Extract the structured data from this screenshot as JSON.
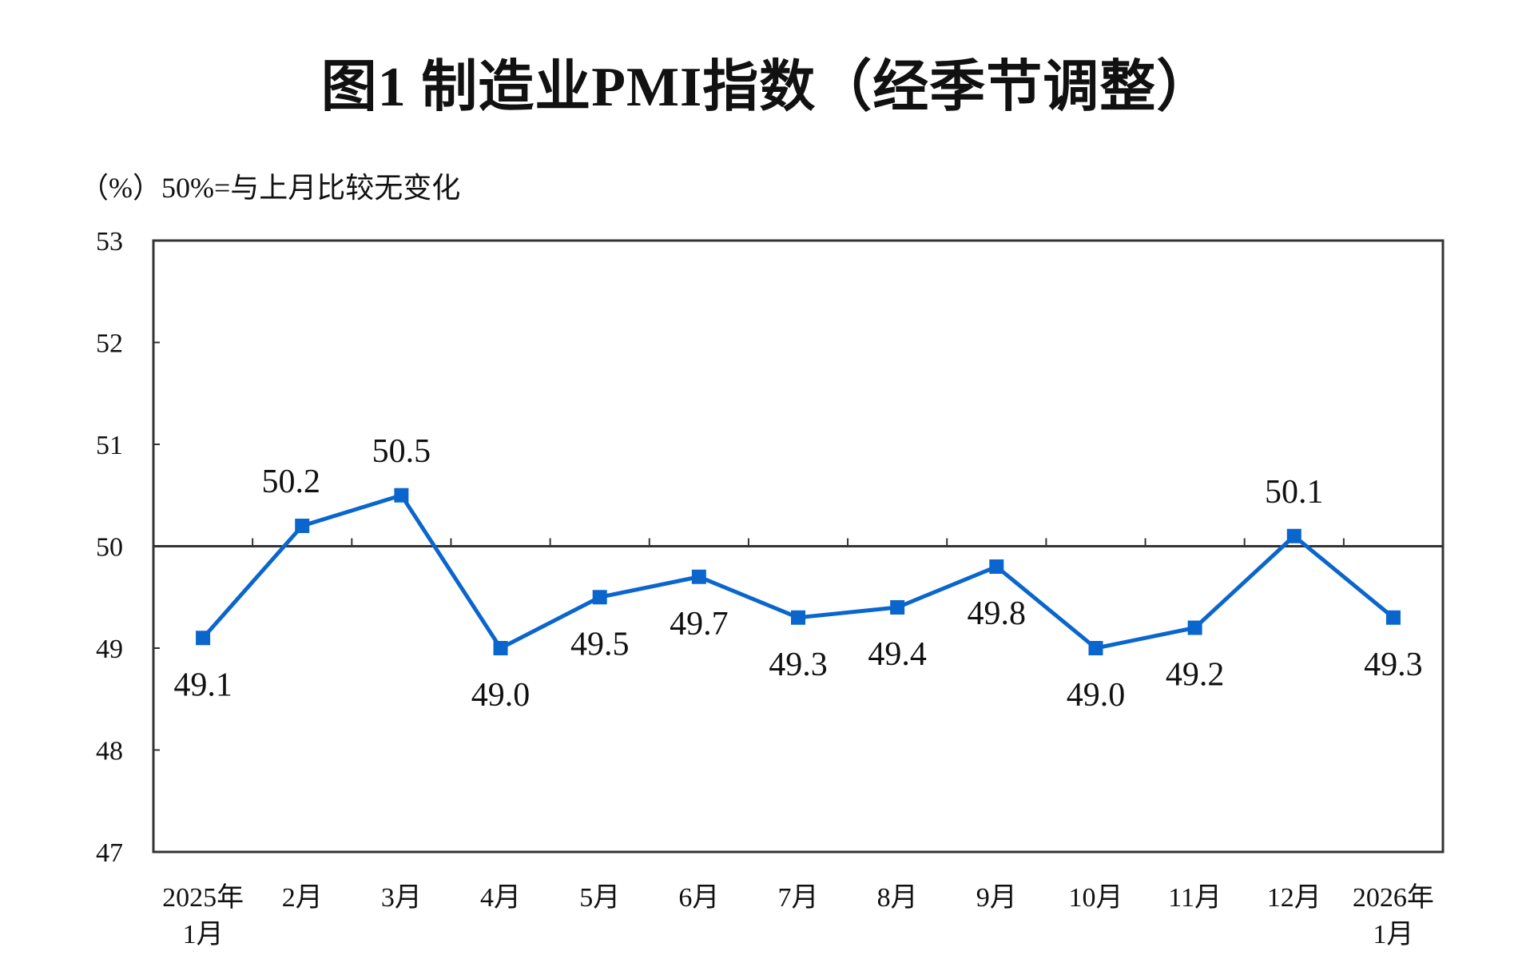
{
  "chart_data": {
    "type": "line",
    "title": "图1  制造业PMI指数（经季节调整）",
    "ylabel": "（%）50%=与上月比较无变化",
    "xlabel": "",
    "categories": [
      [
        "2025年",
        "1月"
      ],
      [
        "2月"
      ],
      [
        "3月"
      ],
      [
        "4月"
      ],
      [
        "5月"
      ],
      [
        "6月"
      ],
      [
        "7月"
      ],
      [
        "8月"
      ],
      [
        "9月"
      ],
      [
        "10月"
      ],
      [
        "11月"
      ],
      [
        "12月"
      ],
      [
        "2026年",
        "1月"
      ]
    ],
    "values": [
      49.1,
      50.2,
      50.5,
      49.0,
      49.5,
      49.7,
      49.3,
      49.4,
      49.8,
      49.0,
      49.2,
      50.1,
      49.3
    ],
    "data_labels": [
      "49.1",
      "50.2",
      "50.5",
      "49.0",
      "49.5",
      "49.7",
      "49.3",
      "49.4",
      "49.8",
      "49.0",
      "49.2",
      "50.1",
      "49.3"
    ],
    "label_positions": [
      "below",
      "above",
      "above",
      "below",
      "below",
      "below",
      "below",
      "below",
      "below",
      "below",
      "below",
      "above",
      "below"
    ],
    "ylim": [
      47,
      53
    ],
    "yticks": [
      47,
      48,
      49,
      50,
      51,
      52,
      53
    ],
    "reference_line": 50,
    "grid": false,
    "legend": "none",
    "colors": {
      "series": "#0a66cc",
      "axis": "#333333"
    }
  }
}
